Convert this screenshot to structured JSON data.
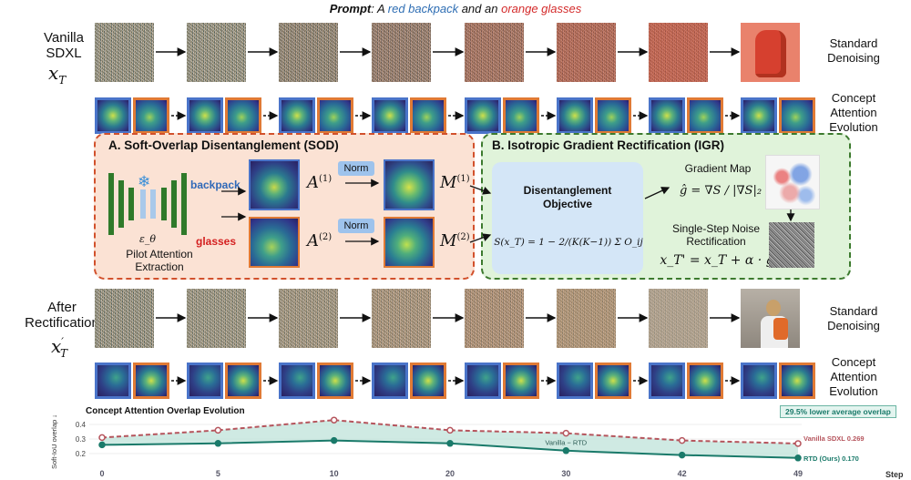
{
  "prompt": {
    "lead": "Prompt",
    "colon": ": A ",
    "obj1": "red backpack",
    "and": " and an ",
    "obj2": "orange glasses"
  },
  "top_row": {
    "label_line1": "Vanilla",
    "label_line2": "SDXL",
    "math": "x_T"
  },
  "bottom_row": {
    "label_line1": "After",
    "label_line2": "Rectification",
    "math": "x'_T"
  },
  "side_labels": {
    "standard_denoising": "Standard Denoising",
    "concept_attention_line1": "Concept",
    "concept_attention_line2": "Attention",
    "concept_attention_line3": "Evolution"
  },
  "panel_a": {
    "title": "A. Soft-Overlap Disentanglement (SOD)",
    "token1": "backpack",
    "token2": "glasses",
    "unet_label": "ε_θ",
    "pilot_line1": "Pilot Attention",
    "pilot_line2": "Extraction",
    "norm": "Norm",
    "a1": "A",
    "a1_sup": "(1)",
    "a2": "A",
    "a2_sup": "(2)",
    "m1": "M",
    "m1_sup": "(1)",
    "m2": "M",
    "m2_sup": "(2)"
  },
  "panel_b": {
    "title": "B. Isotropic Gradient Rectification (IGR)",
    "objective_line1": "Disentanglement",
    "objective_line2": "Objective",
    "objective_formula": "S(x_T) = 1 − 2/(K(K−1)) Σ O_ij",
    "gradient_map": "Gradient Map",
    "gradient_formula": "ĝ = ∇S / |∇S|₂",
    "noise_line1": "Single-Step Noise",
    "noise_line2": "Rectification",
    "update_formula": "x_T' = x_T + α · ĝ"
  },
  "colors": {
    "red": "#d42b2b",
    "blue": "#2d6db3",
    "backpack": "#2f69b8",
    "glasses": "#d42020",
    "vanilla": "#b5545c",
    "rtd": "#1a7a6a",
    "fill": "#bfe3d9"
  },
  "chart_data": {
    "type": "line",
    "title": "Concept Attention Overlap Evolution",
    "ylabel": "Soft-IoU overlap ↓",
    "xlabel": "Step",
    "x": [
      "0",
      "5",
      "10",
      "20",
      "30",
      "42",
      "49"
    ],
    "ylim": [
      0.15,
      0.45
    ],
    "yticks": [
      "0.2",
      "0.3",
      "0.4"
    ],
    "series": [
      {
        "name": "Vanilla SDXL",
        "values": [
          0.31,
          0.36,
          0.43,
          0.36,
          0.34,
          0.29,
          0.269
        ],
        "color": "#b5545c",
        "style": "dashed",
        "marker": "circle"
      },
      {
        "name": "RTD (Ours)",
        "values": [
          0.26,
          0.27,
          0.29,
          0.27,
          0.22,
          0.19,
          0.17
        ],
        "color": "#1a7a6a",
        "style": "solid",
        "marker": "circle"
      }
    ],
    "end_labels": {
      "vanilla": "Vanilla SDXL  0.269",
      "rtd": "RTD (Ours)  0.170"
    },
    "annotations": {
      "gap": "Vanilla − RTD",
      "badge": "29.5% lower average overlap"
    }
  }
}
